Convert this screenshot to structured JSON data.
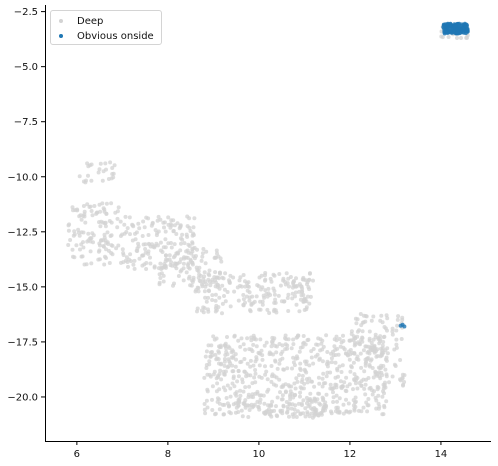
{
  "chart_data": {
    "type": "scatter",
    "title": "",
    "xlabel": "",
    "ylabel": "",
    "xlim": [
      5.3,
      15.1
    ],
    "ylim": [
      -22.0,
      -2.2
    ],
    "xticks": [
      6,
      8,
      10,
      12,
      14
    ],
    "yticks": [
      -2.5,
      -5.0,
      -7.5,
      -10.0,
      -12.5,
      -15.0,
      -17.5,
      -20.0
    ],
    "xtick_labels": [
      "6",
      "8",
      "10",
      "12",
      "14"
    ],
    "ytick_labels": [
      "−2.5",
      "−5.0",
      "−7.5",
      "−10.0",
      "−12.5",
      "−15.0",
      "−17.5",
      "−20.0"
    ],
    "grid": false,
    "legend_position": "top-left",
    "series": [
      {
        "name": "Deep",
        "color": "#d3d3d3",
        "clusters": [
          {
            "x": [
              5.8,
              7.0
            ],
            "y": [
              -14.0,
              -11.2
            ],
            "n": 120
          },
          {
            "x": [
              6.0,
              7.0
            ],
            "y": [
              -10.3,
              -9.3
            ],
            "n": 25
          },
          {
            "x": [
              7.0,
              8.6
            ],
            "y": [
              -14.2,
              -11.8
            ],
            "n": 160
          },
          {
            "x": [
              7.8,
              9.2
            ],
            "y": [
              -15.0,
              -13.2
            ],
            "n": 90
          },
          {
            "x": [
              8.6,
              11.2
            ],
            "y": [
              -16.2,
              -14.3
            ],
            "n": 190
          },
          {
            "x": [
              10.5,
              11.0
            ],
            "y": [
              -15.0,
              -14.6
            ],
            "n": 15
          },
          {
            "x": [
              8.8,
              12.8
            ],
            "y": [
              -20.8,
              -17.2
            ],
            "n": 620
          },
          {
            "x": [
              9.5,
              11.5
            ],
            "y": [
              -21.0,
              -20.0
            ],
            "n": 80
          },
          {
            "x": [
              12.0,
              13.2
            ],
            "y": [
              -19.5,
              -16.2
            ],
            "n": 110
          },
          {
            "x": [
              14.0,
              14.6
            ],
            "y": [
              -3.7,
              -3.0
            ],
            "n": 25
          }
        ]
      },
      {
        "name": "Obvious onside",
        "color": "#1f77b4",
        "clusters": [
          {
            "x": [
              14.05,
              14.6
            ],
            "y": [
              -3.5,
              -3.05
            ],
            "n": 130
          },
          {
            "x": [
              13.1,
              13.2
            ],
            "y": [
              -16.85,
              -16.7
            ],
            "n": 3
          }
        ]
      }
    ]
  }
}
